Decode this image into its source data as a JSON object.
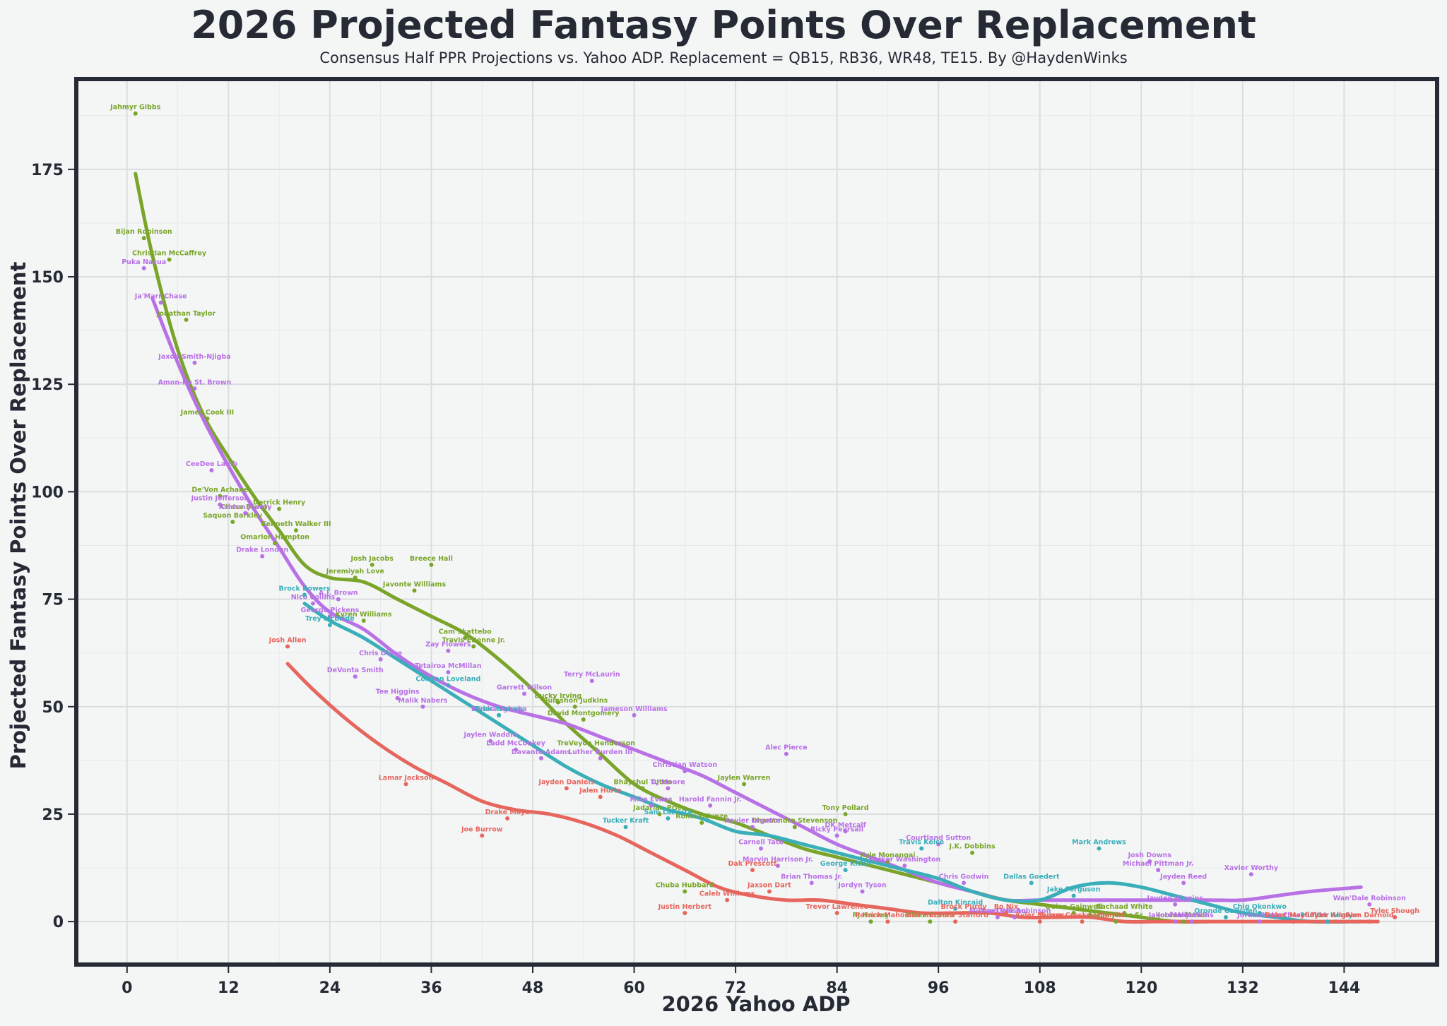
{
  "chart_data": {
    "type": "scatter",
    "title": "2026 Projected Fantasy Points Over Replacement",
    "subtitle": "Consensus Half PPR Projections vs. Yahoo ADP. Replacement = QB15, RB36, WR48, TE15. By @HaydenWinks",
    "xlabel": "2026 Yahoo ADP",
    "ylabel": "Projected Fantasy Points Over Replacement",
    "xlim": [
      -6,
      155
    ],
    "ylim": [
      -10,
      196
    ],
    "xticks": [
      0,
      12,
      24,
      36,
      48,
      60,
      72,
      84,
      96,
      108,
      120,
      132,
      144
    ],
    "yticks": [
      0,
      25,
      50,
      75,
      100,
      125,
      150,
      175
    ],
    "grid": true,
    "colors": {
      "RB": "#7aa52a",
      "WR": "#b971e6",
      "TE": "#3aaeb9",
      "QB": "#e6665e"
    },
    "series": [
      {
        "points": [
          {
            "x": 1,
            "y": 188,
            "label": "Jahmyr Gibbs"
          },
          {
            "x": 2,
            "y": 159,
            "label": "Bijan Robinson"
          },
          {
            "x": 5,
            "y": 154,
            "label": "Christian McCaffrey"
          },
          {
            "x": 7,
            "y": 140,
            "label": "Jonathan Taylor"
          },
          {
            "x": 9.5,
            "y": 117,
            "label": "James Cook III"
          },
          {
            "x": 11,
            "y": 99,
            "label": "De'Von Achane"
          },
          {
            "x": 18,
            "y": 96,
            "label": "Derrick Henry"
          },
          {
            "x": 14,
            "y": 95,
            "label": "Chase Brown"
          },
          {
            "x": 12.5,
            "y": 93,
            "label": "Saquon Barkley"
          },
          {
            "x": 20,
            "y": 91,
            "label": "Kenneth Walker III"
          },
          {
            "x": 17.5,
            "y": 88,
            "label": "Omarion Hampton"
          },
          {
            "x": 29,
            "y": 83,
            "label": "Josh Jacobs"
          },
          {
            "x": 36,
            "y": 83,
            "label": "Breece Hall"
          },
          {
            "x": 27,
            "y": 80,
            "label": "Jeremiyah Love"
          },
          {
            "x": 34,
            "y": 77,
            "label": "Javonte Williams"
          },
          {
            "x": 28,
            "y": 70,
            "label": "Kyren Williams"
          },
          {
            "x": 40,
            "y": 66,
            "label": "Cam Skattebo"
          },
          {
            "x": 41,
            "y": 64,
            "label": "Travis Etienne Jr."
          },
          {
            "x": 51,
            "y": 51,
            "label": "Bucky Irving"
          },
          {
            "x": 53,
            "y": 50,
            "label": "Quinshon Judkins"
          },
          {
            "x": 54,
            "y": 47,
            "label": "David Montgomery"
          },
          {
            "x": 55.5,
            "y": 40,
            "label": "TreVeyon Henderson"
          },
          {
            "x": 61,
            "y": 31,
            "label": "Bhayshul Tuten"
          },
          {
            "x": 73,
            "y": 32,
            "label": "Jaylen Warren"
          },
          {
            "x": 63,
            "y": 25,
            "label": "Jadarian Price"
          },
          {
            "x": 68,
            "y": 23,
            "label": "Rome Odunze"
          },
          {
            "x": 79,
            "y": 22,
            "label": "Bhamondre Stevenson"
          },
          {
            "x": 85,
            "y": 25,
            "label": "Tony Pollard"
          },
          {
            "x": 66,
            "y": 7,
            "label": "Chuba Hubbard"
          },
          {
            "x": 90,
            "y": 14,
            "label": "Kyle Monangai"
          },
          {
            "x": 100,
            "y": 16,
            "label": "J.K. Dobbins"
          },
          {
            "x": 88,
            "y": 0,
            "label": "RJ Harvey"
          },
          {
            "x": 95,
            "y": 0,
            "label": "Blake Corum"
          },
          {
            "x": 112,
            "y": 2,
            "label": "Quinn Gainwell"
          },
          {
            "x": 118,
            "y": 2,
            "label": "Rachaad White"
          },
          {
            "x": 117,
            "y": 0,
            "label": "Aaron Jones Sr."
          },
          {
            "x": 125,
            "y": 0,
            "label": "Jordan Mason"
          }
        ]
      },
      {
        "points": [
          {
            "x": 2,
            "y": 152,
            "label": "Puka Nacua"
          },
          {
            "x": 4,
            "y": 144,
            "label": "Ja'Marr Chase"
          },
          {
            "x": 8,
            "y": 130,
            "label": "Jaxon Smith-Njigba"
          },
          {
            "x": 8,
            "y": 124,
            "label": "Amon-Ra St. Brown"
          },
          {
            "x": 10,
            "y": 105,
            "label": "CeeDee Lamb"
          },
          {
            "x": 11,
            "y": 97,
            "label": "Justin Jefferson"
          },
          {
            "x": 14,
            "y": 95,
            "label": "Ashton Jeanty"
          },
          {
            "x": 16,
            "y": 85,
            "label": "Drake London"
          },
          {
            "x": 25,
            "y": 75,
            "label": "A.J. Brown"
          },
          {
            "x": 22,
            "y": 74,
            "label": "Nico Collins"
          },
          {
            "x": 24,
            "y": 71,
            "label": "George Pickens"
          },
          {
            "x": 30,
            "y": 61,
            "label": "Chris Olave"
          },
          {
            "x": 27,
            "y": 57,
            "label": "DeVonta Smith"
          },
          {
            "x": 38,
            "y": 63,
            "label": "Zay Flowers"
          },
          {
            "x": 38,
            "y": 58,
            "label": "Tetairoa McMillan"
          },
          {
            "x": 32,
            "y": 52,
            "label": "Tee Higgins"
          },
          {
            "x": 35,
            "y": 50,
            "label": "Malik Nabers"
          },
          {
            "x": 47,
            "y": 53,
            "label": "Garrett Wilson"
          },
          {
            "x": 44,
            "y": 48,
            "label": "Emeka Egbuka"
          },
          {
            "x": 55,
            "y": 56,
            "label": "Terry McLaurin"
          },
          {
            "x": 60,
            "y": 48,
            "label": "Jameson Williams"
          },
          {
            "x": 43,
            "y": 42,
            "label": "Jaylen Waddle"
          },
          {
            "x": 46,
            "y": 40,
            "label": "Ladd McConkey"
          },
          {
            "x": 49,
            "y": 38,
            "label": "Davante Adams"
          },
          {
            "x": 56,
            "y": 38,
            "label": "Luther Burden III"
          },
          {
            "x": 66,
            "y": 35,
            "label": "Christian Watson"
          },
          {
            "x": 64,
            "y": 31,
            "label": "DJ Moore"
          },
          {
            "x": 62,
            "y": 27,
            "label": "Mike Evans"
          },
          {
            "x": 69,
            "y": 27,
            "label": "Harold Fannin Jr."
          },
          {
            "x": 74,
            "y": 22,
            "label": "Xavier Legette"
          },
          {
            "x": 84,
            "y": 20,
            "label": "Ricky Pearsall"
          },
          {
            "x": 85,
            "y": 21,
            "label": "DK Metcalf"
          },
          {
            "x": 78,
            "y": 39,
            "label": "Alec Pierce"
          },
          {
            "x": 75,
            "y": 17,
            "label": "Carnell Tate"
          },
          {
            "x": 77,
            "y": 13,
            "label": "Marvin Harrison Jr."
          },
          {
            "x": 81,
            "y": 9,
            "label": "Brian Thomas Jr."
          },
          {
            "x": 87,
            "y": 7,
            "label": "Jordyn Tyson"
          },
          {
            "x": 92,
            "y": 13,
            "label": "Parker Washington"
          },
          {
            "x": 96,
            "y": 18,
            "label": "Courtland Sutton"
          },
          {
            "x": 99,
            "y": 9,
            "label": "Chris Godwin"
          },
          {
            "x": 103,
            "y": 1,
            "label": "Michael Wilson"
          },
          {
            "x": 105,
            "y": 1,
            "label": "Wan'Dale Robinson"
          },
          {
            "x": 122,
            "y": 12,
            "label": "Michael Pittman Jr."
          },
          {
            "x": 124,
            "y": 4,
            "label": "Jayden Higgins"
          },
          {
            "x": 125,
            "y": 9,
            "label": "Jayden Reed"
          },
          {
            "x": 121,
            "y": 14,
            "label": "Josh Downs"
          },
          {
            "x": 133,
            "y": 11,
            "label": "Xavier Worthy"
          },
          {
            "x": 147,
            "y": 4,
            "label": "Wan'Dale Robinson"
          },
          {
            "x": 124,
            "y": 0,
            "label": "Jakobi Meyers"
          },
          {
            "x": 126,
            "y": 0,
            "label": "Malik Willis"
          },
          {
            "x": 134,
            "y": 0,
            "label": "Jordan Love"
          },
          {
            "x": 138,
            "y": 0,
            "label": "Ricky Charbonnet"
          }
        ]
      },
      {
        "points": [
          {
            "x": 21,
            "y": 76,
            "label": "Brock Bowers"
          },
          {
            "x": 24,
            "y": 69,
            "label": "Trey McBride"
          },
          {
            "x": 38,
            "y": 55,
            "label": "Colston Loveland"
          },
          {
            "x": 44,
            "y": 48,
            "label": "Tyler Warren"
          },
          {
            "x": 59,
            "y": 22,
            "label": "Tucker Kraft"
          },
          {
            "x": 64,
            "y": 24,
            "label": "Sam LaPorta"
          },
          {
            "x": 94,
            "y": 17,
            "label": "Travis Kelce"
          },
          {
            "x": 85,
            "y": 12,
            "label": "George Kittle"
          },
          {
            "x": 98,
            "y": 3,
            "label": "Dalton Kincaid"
          },
          {
            "x": 107,
            "y": 9,
            "label": "Dallas Goedert"
          },
          {
            "x": 115,
            "y": 17,
            "label": "Mark Andrews"
          },
          {
            "x": 112,
            "y": 6,
            "label": "Jake Ferguson"
          },
          {
            "x": 130,
            "y": 1,
            "label": "Oronde Gadsden"
          },
          {
            "x": 134,
            "y": 2,
            "label": "Chig Okonkwo"
          },
          {
            "x": 142,
            "y": 0,
            "label": "Hunter Henry"
          }
        ]
      },
      {
        "points": [
          {
            "x": 19,
            "y": 64,
            "label": "Josh Allen"
          },
          {
            "x": 33,
            "y": 32,
            "label": "Lamar Jackson"
          },
          {
            "x": 45,
            "y": 24,
            "label": "Drake Maye"
          },
          {
            "x": 42,
            "y": 20,
            "label": "Joe Burrow"
          },
          {
            "x": 52,
            "y": 31,
            "label": "Jayden Daniels"
          },
          {
            "x": 56,
            "y": 29,
            "label": "Jalen Hurts"
          },
          {
            "x": 74,
            "y": 12,
            "label": "Dak Prescott"
          },
          {
            "x": 76,
            "y": 7,
            "label": "Jaxson Dart"
          },
          {
            "x": 71,
            "y": 5,
            "label": "Caleb Williams"
          },
          {
            "x": 66,
            "y": 2,
            "label": "Justin Herbert"
          },
          {
            "x": 84,
            "y": 2,
            "label": "Trevor Lawrence"
          },
          {
            "x": 90,
            "y": 0,
            "label": "Patrick Mahomes"
          },
          {
            "x": 99,
            "y": 2,
            "label": "Brock Purdy"
          },
          {
            "x": 104,
            "y": 2,
            "label": "Bo Nix"
          },
          {
            "x": 98,
            "y": 0,
            "label": "Matthew Stafford"
          },
          {
            "x": 108,
            "y": 0,
            "label": "Kyler Murray"
          },
          {
            "x": 113,
            "y": 0,
            "label": "Jacory Croskey-Merritt"
          },
          {
            "x": 138,
            "y": 0,
            "label": "Baker Mayfield"
          },
          {
            "x": 143,
            "y": 0,
            "label": "Tyler Allgeier"
          },
          {
            "x": 147,
            "y": 0,
            "label": "Sam Darnold"
          },
          {
            "x": 150,
            "y": 1,
            "label": "Tyler Shough"
          }
        ]
      }
    ],
    "trend_lines": [
      {
        "x": [
          1,
          3,
          6,
          9,
          12,
          15,
          18,
          21,
          24,
          28,
          32,
          36,
          40,
          44,
          48,
          52,
          56,
          60,
          64,
          68,
          72,
          76,
          80,
          84,
          88,
          92,
          96,
          100,
          104,
          108,
          112,
          116,
          120,
          124,
          128
        ],
        "y": [
          174,
          155,
          133,
          118,
          108,
          99,
          91,
          83,
          80,
          79,
          75,
          71,
          67,
          61,
          54,
          46,
          39,
          32,
          28,
          25,
          23,
          20,
          17,
          15,
          13,
          11,
          9,
          7,
          5,
          4,
          3,
          2,
          1,
          0,
          0
        ]
      },
      {
        "x": [
          3,
          6,
          9,
          12,
          15,
          18,
          21,
          24,
          28,
          32,
          36,
          40,
          44,
          48,
          52,
          56,
          60,
          64,
          68,
          72,
          76,
          80,
          84,
          88,
          92,
          96,
          100,
          104,
          108,
          112,
          116,
          120,
          124,
          128,
          132,
          136,
          140,
          146
        ],
        "y": [
          145,
          130,
          117,
          106,
          96,
          87,
          78,
          72,
          68,
          62,
          57,
          53,
          50,
          48,
          46,
          43,
          40,
          37,
          34,
          30,
          26,
          22,
          18,
          15,
          12,
          9,
          7,
          5,
          5,
          5,
          5,
          5,
          5,
          5,
          5,
          6,
          7,
          8
        ]
      },
      {
        "x": [
          21,
          24,
          28,
          32,
          36,
          40,
          44,
          48,
          52,
          56,
          60,
          64,
          68,
          72,
          76,
          80,
          84,
          88,
          92,
          96,
          100,
          104,
          108,
          112,
          116,
          120,
          124,
          128,
          132,
          136,
          140,
          146
        ],
        "y": [
          74,
          70,
          66,
          61,
          56,
          51,
          46,
          41,
          36,
          32,
          29,
          26,
          24,
          21,
          20,
          18,
          16,
          14,
          12,
          10,
          7,
          5,
          5,
          8,
          9,
          8,
          6,
          4,
          2,
          1,
          0,
          0
        ]
      },
      {
        "x": [
          19,
          22,
          26,
          30,
          34,
          38,
          42,
          46,
          50,
          54,
          58,
          62,
          66,
          70,
          74,
          78,
          82,
          86,
          90,
          94,
          98,
          102,
          106,
          110,
          114,
          118,
          122,
          126,
          130,
          136,
          142,
          148
        ],
        "y": [
          60,
          54,
          47,
          41,
          36,
          32,
          28,
          26,
          25,
          23,
          20,
          16,
          12,
          8,
          6,
          5,
          5,
          4,
          3,
          2,
          2,
          2,
          1,
          1,
          1,
          0,
          0,
          0,
          0,
          0,
          0,
          0
        ]
      }
    ]
  }
}
